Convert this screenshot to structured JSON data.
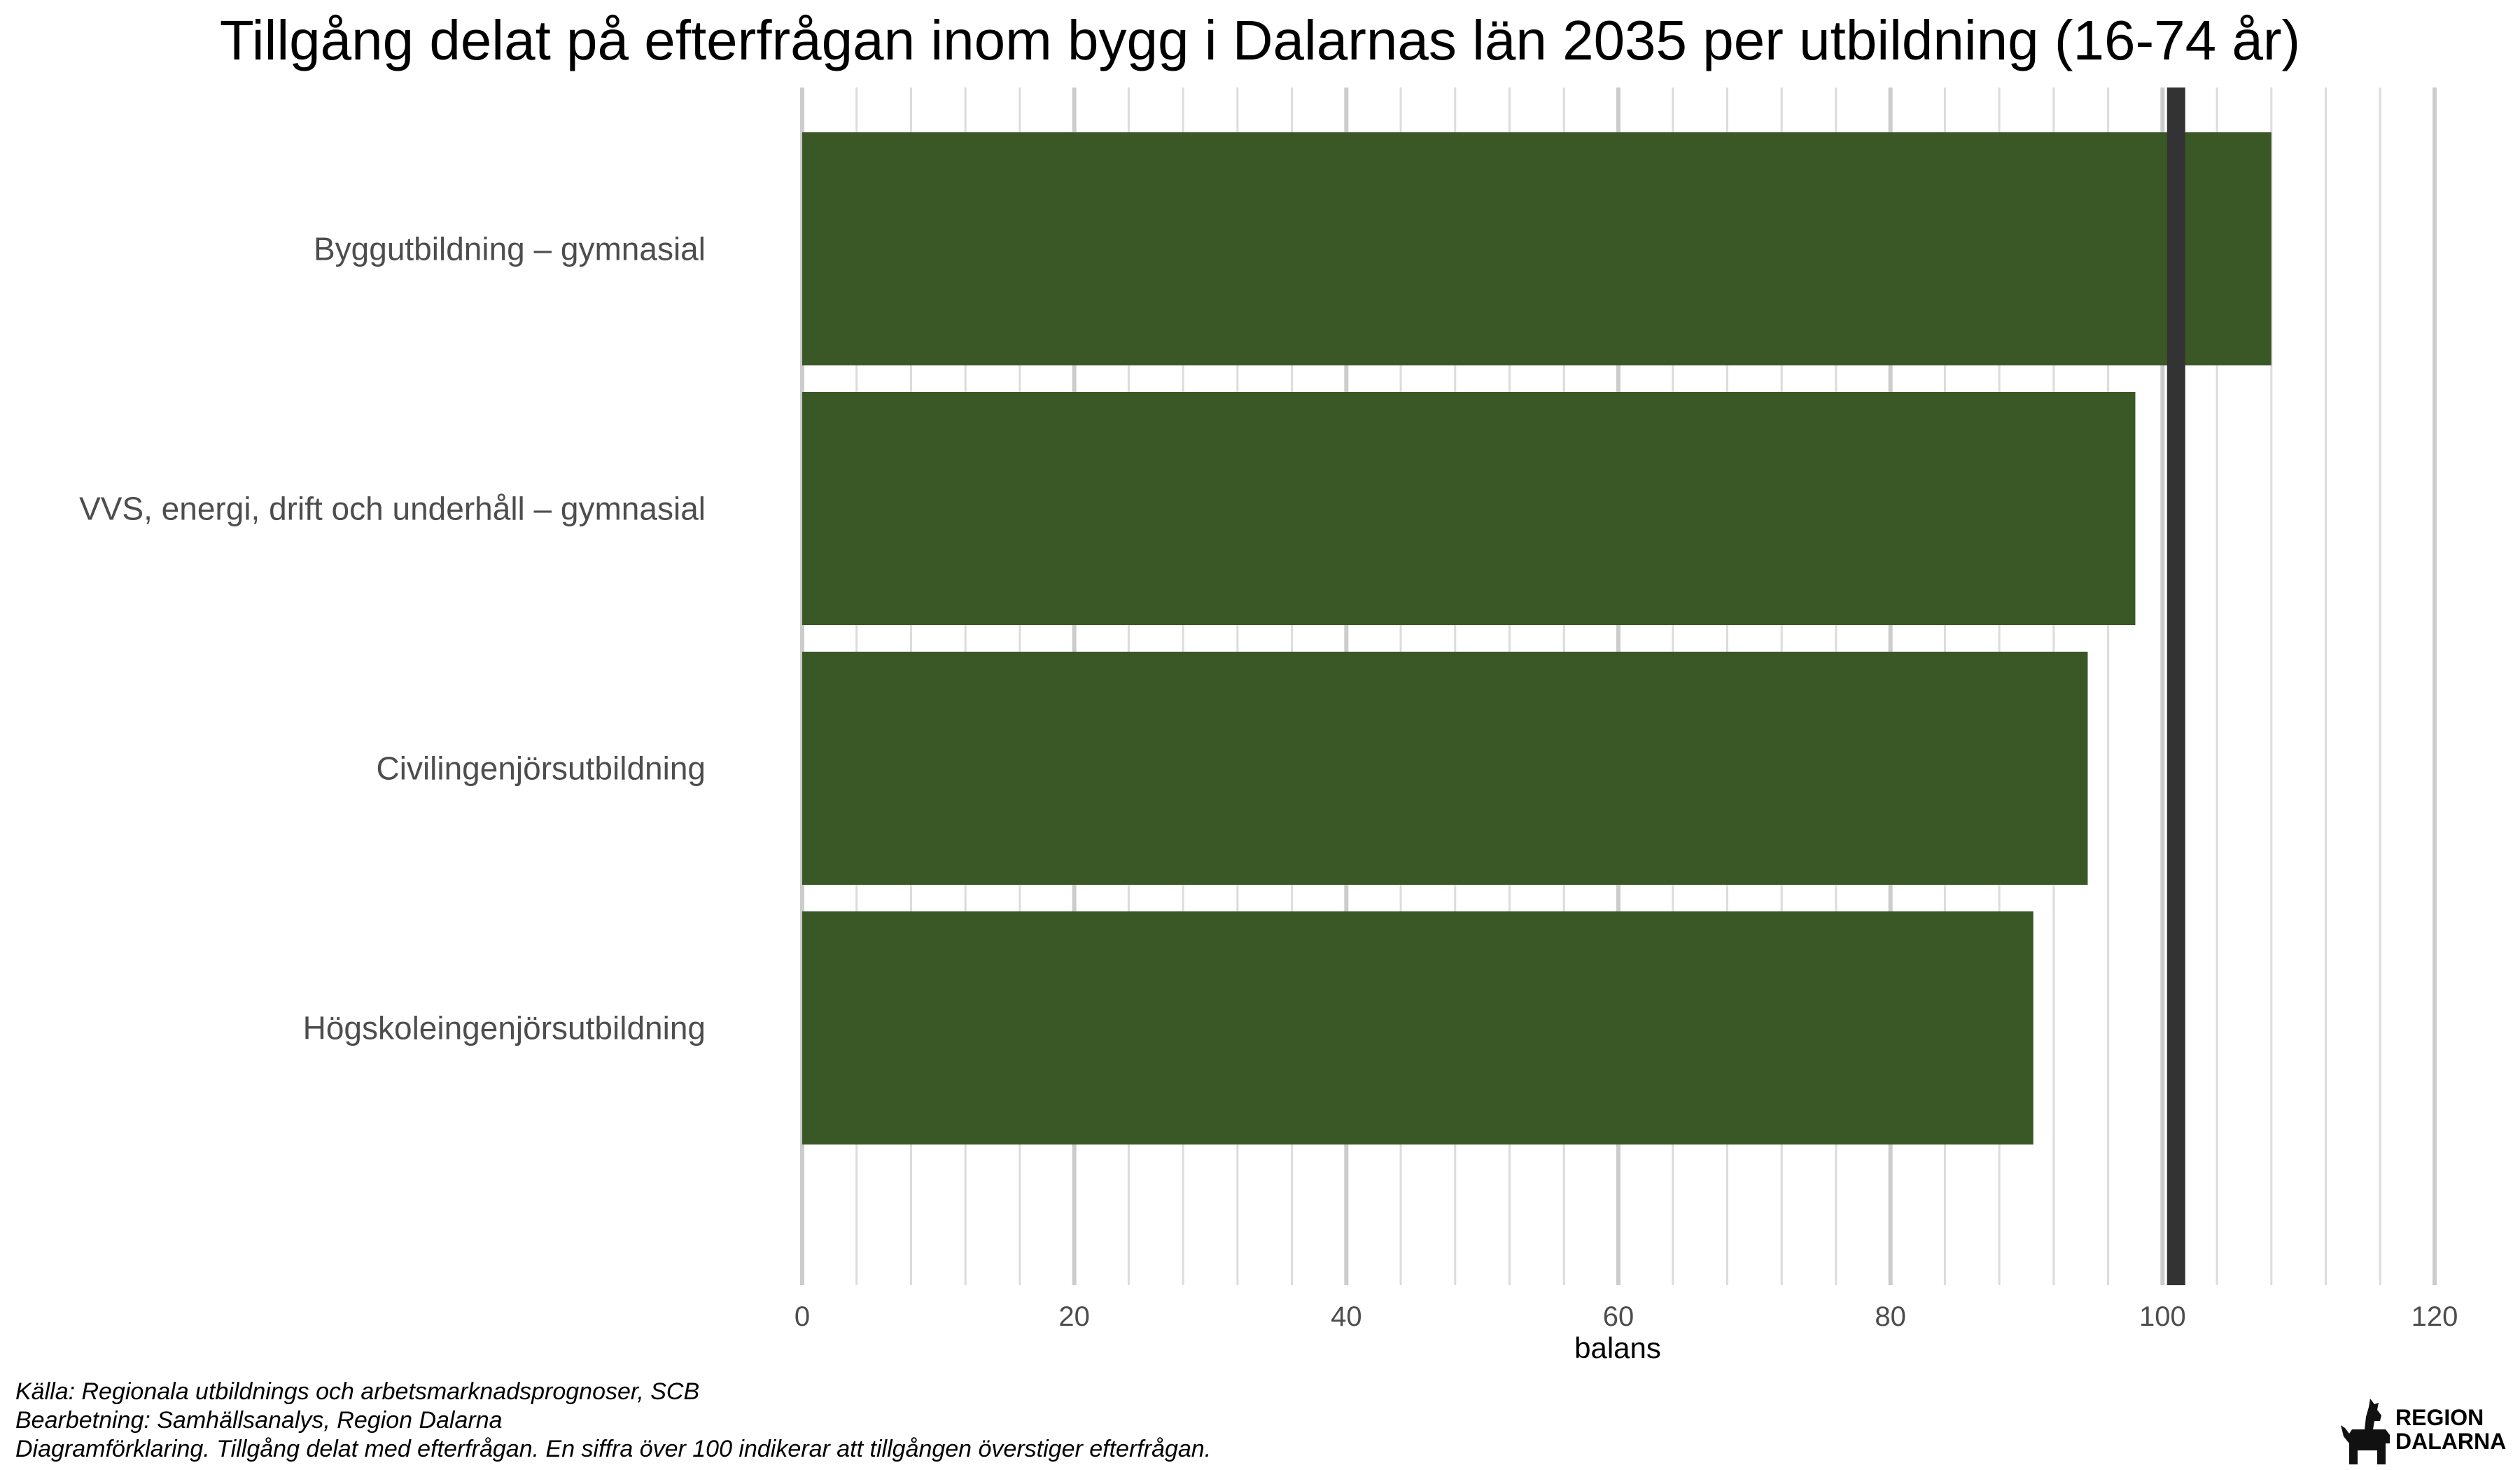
{
  "chart_data": {
    "type": "bar",
    "orientation": "horizontal",
    "title": "Tillgång delat på efterfrågan inom bygg i Dalarnas län 2035 per utbildning (16-74 år)",
    "categories": [
      "Byggutbildning – gymnasial",
      "VVS, energi, drift och underhåll – gymnasial",
      "Civilingenjörsutbildning",
      "Högskoleingenjörsutbildning"
    ],
    "values": [
      108,
      98,
      94.5,
      90.5
    ],
    "xlabel": "balans",
    "ylabel": "",
    "xlim": [
      0,
      120
    ],
    "xticks": [
      "0",
      "20",
      "40",
      "60",
      "80",
      "100",
      "120"
    ],
    "reference_line": 101,
    "grid": "vertical",
    "colors": {
      "bar": "#3a5726",
      "reference_line": "#333333",
      "grid_major": "#cccccc",
      "grid_minor": "#dcdcdc"
    }
  },
  "caption": {
    "line1": "Källa: Regionala utbildnings och arbetsmarknadsprognoser, SCB",
    "line2": "Bearbetning: Samhällsanalys, Region Dalarna",
    "line3": "Diagramförklaring. Tillgång delat med efterfrågan. En siffra över 100 indikerar att tillgången överstiger efterfrågan."
  },
  "logo": {
    "icon": "dala-horse-icon",
    "line1": "REGION",
    "line2": "DALARNA"
  }
}
